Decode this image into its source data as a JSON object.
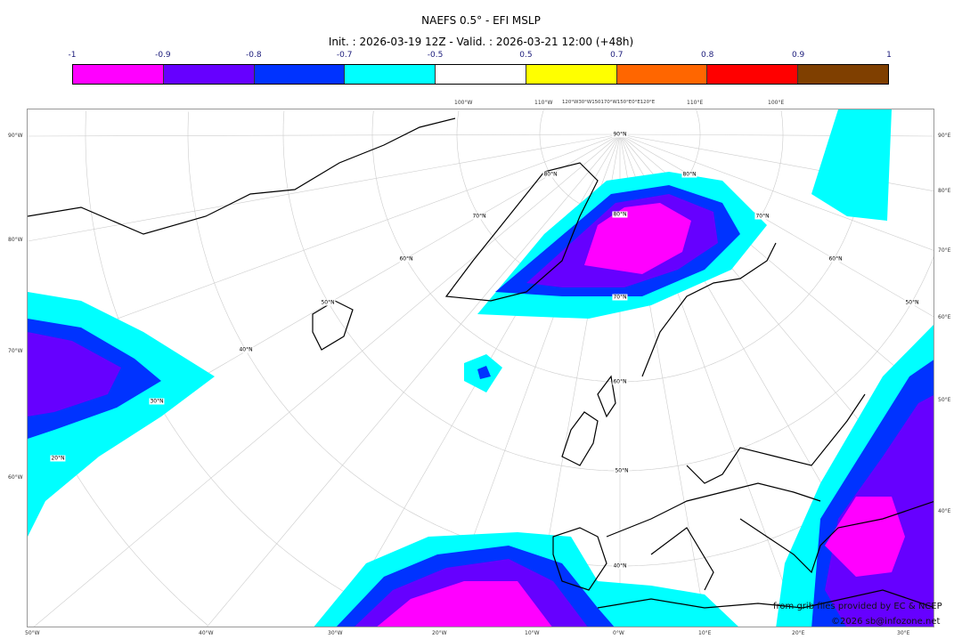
{
  "title": "NAEFS 0.5° - EFI MSLP",
  "subtitle": "Init. : 2026-03-19 12Z - Valid. : 2026-03-21 12:00 (+48h)",
  "colorbar": {
    "ticks": [
      "-1",
      "-0.9",
      "-0.8",
      "-0.7",
      "-0.5",
      "0.5",
      "0.7",
      "0.8",
      "0.9",
      "1"
    ],
    "colors": [
      "#ff00ff",
      "#6600ff",
      "#0033ff",
      "#00ffff",
      "#ffffff",
      "#ffff00",
      "#ff6600",
      "#ff0000",
      "#7f3f00"
    ]
  },
  "map": {
    "left_labels": [
      "90°W",
      "80°W",
      "70°W",
      "60°W"
    ],
    "right_labels": [
      "90°E",
      "80°E",
      "70°E",
      "60°E",
      "50°E",
      "40°E"
    ],
    "bottom_labels": [
      "50°W",
      "40°W",
      "30°W",
      "20°W",
      "10°W",
      "0°W",
      "10°E",
      "20°E",
      "30°E"
    ],
    "top_labels": [
      "100°W",
      "110°W",
      "120°W30°W150170°W150°E0°E120°E",
      "110°E",
      "100°E"
    ],
    "lat_labels": [
      "90°N",
      "80°N",
      "70°N",
      "60°N",
      "50°N",
      "40°N",
      "80°N",
      "70°N",
      "60°N",
      "50°N",
      "40°N",
      "30°N",
      "20°N",
      "80°N",
      "70°N",
      "60°N",
      "50°N"
    ]
  },
  "credits": {
    "source": "from grib files provided by EC & NCEP",
    "copyright": "©2026 sb@infozone.net"
  }
}
